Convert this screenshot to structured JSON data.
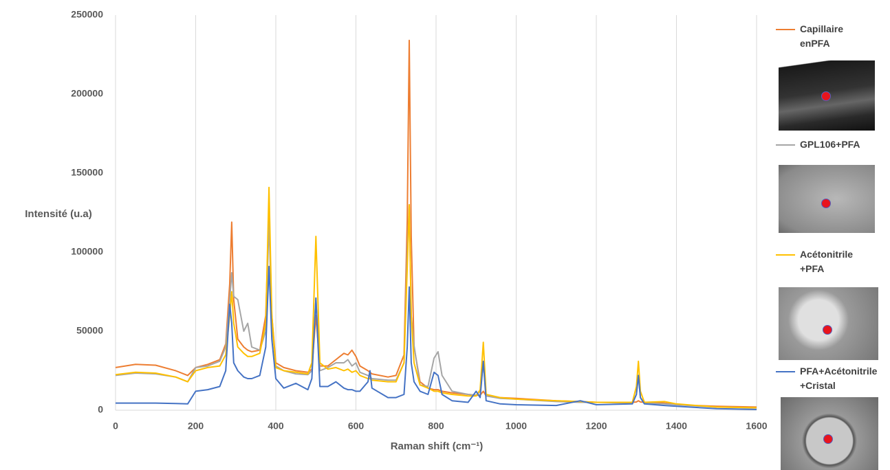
{
  "chart_data": {
    "type": "line",
    "xlabel": "Raman shift (cm⁻¹)",
    "ylabel": "Intensité (u.a)",
    "x": [
      0,
      50,
      100,
      150,
      180,
      200,
      230,
      260,
      275,
      285,
      290,
      295,
      305,
      320,
      330,
      340,
      360,
      375,
      383,
      390,
      400,
      420,
      450,
      480,
      490,
      500,
      510,
      530,
      550,
      570,
      580,
      590,
      600,
      610,
      630,
      635,
      640,
      680,
      700,
      720,
      728,
      733,
      738,
      745,
      760,
      780,
      795,
      805,
      815,
      840,
      880,
      900,
      910,
      918,
      925,
      960,
      1000,
      1100,
      1160,
      1200,
      1290,
      1300,
      1305,
      1310,
      1320,
      1370,
      1400,
      1500,
      1600
    ],
    "series": [
      {
        "name": "Capillaire enPFA",
        "color": "#ed7d31",
        "values": [
          27000,
          29000,
          28500,
          25000,
          22000,
          27000,
          29000,
          32000,
          42000,
          80000,
          119000,
          70000,
          45000,
          40000,
          38000,
          37000,
          38000,
          60000,
          125000,
          60000,
          30000,
          27000,
          25000,
          24000,
          26000,
          60000,
          28000,
          28000,
          32000,
          36000,
          35000,
          38000,
          34000,
          28000,
          25000,
          24000,
          23000,
          21000,
          22000,
          35000,
          120000,
          234000,
          110000,
          40000,
          18000,
          14000,
          13000,
          13000,
          12000,
          11000,
          10000,
          9500,
          9500,
          12000,
          9000,
          8000,
          7500,
          6000,
          5500,
          5000,
          5000,
          5200,
          6000,
          5200,
          5000,
          4500,
          3500,
          2500,
          2000
        ]
      },
      {
        "name": "GPL106+PFA",
        "color": "#a5a5a5",
        "values": [
          22000,
          23500,
          23000,
          21000,
          18000,
          27000,
          28000,
          31000,
          40000,
          70000,
          87000,
          72000,
          70000,
          50000,
          55000,
          40000,
          38000,
          50000,
          120000,
          55000,
          28000,
          25000,
          23000,
          22500,
          25000,
          71000,
          25000,
          27000,
          30000,
          30000,
          32000,
          28000,
          30000,
          24000,
          22000,
          21000,
          20000,
          19000,
          19000,
          30000,
          100000,
          130000,
          60000,
          41000,
          16000,
          15000,
          33000,
          37000,
          22000,
          12000,
          10000,
          9500,
          12000,
          30000,
          9000,
          7500,
          7000,
          5500,
          5000,
          5000,
          4500,
          10000,
          22000,
          8000,
          4500,
          4000,
          3500,
          2000,
          1500
        ]
      },
      {
        "name": "Acétonitrile +PFA",
        "color": "#ffc000",
        "values": [
          22500,
          24000,
          23500,
          21000,
          18000,
          25000,
          27000,
          28000,
          35000,
          60000,
          75000,
          55000,
          40000,
          36000,
          34000,
          34000,
          36000,
          55000,
          141000,
          60000,
          27000,
          25000,
          24000,
          23000,
          30000,
          110000,
          30000,
          26000,
          27000,
          25000,
          26000,
          24000,
          25000,
          22000,
          20000,
          20000,
          19000,
          18000,
          18000,
          30000,
          90000,
          130000,
          60000,
          30000,
          16000,
          14000,
          12000,
          12000,
          11000,
          10000,
          9000,
          9000,
          13000,
          43000,
          10000,
          8000,
          7000,
          6000,
          5500,
          5000,
          5000,
          15000,
          31000,
          12000,
          5000,
          5500,
          4000,
          2000,
          1500
        ]
      },
      {
        "name": "PFA+Acétonitrile +Cristal",
        "color": "#4472c4",
        "values": [
          4500,
          4500,
          4500,
          4200,
          4000,
          12000,
          13000,
          15000,
          25000,
          67000,
          55000,
          30000,
          25000,
          21000,
          20000,
          20000,
          22000,
          40000,
          91000,
          45000,
          20000,
          14000,
          17000,
          13000,
          20000,
          71000,
          15000,
          15000,
          18000,
          14000,
          13000,
          13000,
          12000,
          12000,
          18000,
          25000,
          14000,
          8000,
          8000,
          10000,
          40000,
          78000,
          30000,
          18000,
          12000,
          10000,
          24000,
          22000,
          10000,
          6000,
          5000,
          12000,
          8000,
          31000,
          6000,
          4000,
          3500,
          3000,
          6000,
          3500,
          4000,
          10000,
          22000,
          8000,
          4000,
          3000,
          2500,
          1000,
          500
        ]
      }
    ],
    "xlim": [
      0,
      1600
    ],
    "xticks": [
      0,
      200,
      400,
      600,
      800,
      1000,
      1200,
      1400,
      1600
    ],
    "ylim": [
      0,
      250000
    ],
    "yticks": [
      0,
      50000,
      100000,
      150000,
      200000,
      250000
    ],
    "grid": "x",
    "legend": "right"
  }
}
